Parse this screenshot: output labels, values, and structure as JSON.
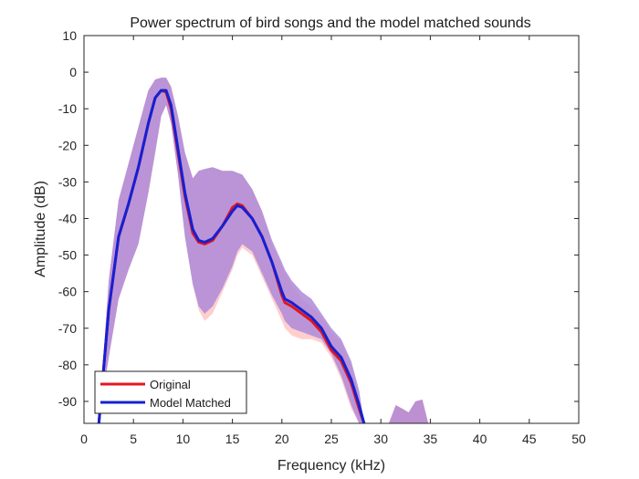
{
  "chart_data": {
    "type": "area",
    "title": "Power spectrum of bird songs and the model matched sounds",
    "xlabel": "Frequency (kHz)",
    "ylabel": "Amplitude (dB)",
    "xlim": [
      0,
      50
    ],
    "ylim": [
      -96,
      10
    ],
    "xticks": [
      0,
      5,
      10,
      15,
      20,
      25,
      30,
      35,
      40,
      45,
      50
    ],
    "yticks": [
      10,
      0,
      -10,
      -20,
      -30,
      -40,
      -50,
      -60,
      -70,
      -80,
      -90
    ],
    "grid": false,
    "legend_position": "bottom-left",
    "series": [
      {
        "name": "Original",
        "color": "#e4141c",
        "band_color": "#ffb3b3",
        "x": [
          1.5,
          2.5,
          3.5,
          4.5,
          5.5,
          6.5,
          7.2,
          7.8,
          8.3,
          8.8,
          9.5,
          10.2,
          11,
          11.6,
          12.2,
          13,
          14,
          15,
          15.5,
          16,
          17,
          18,
          19,
          20,
          20.3,
          21,
          22,
          23,
          24,
          25,
          26,
          27,
          27.8,
          28.3
        ],
        "y": [
          -96,
          -65,
          -45,
          -36,
          -26,
          -14,
          -7,
          -5,
          -5.5,
          -10,
          -22,
          -34,
          -44,
          -46.5,
          -47,
          -46,
          -42,
          -37,
          -36,
          -36.5,
          -40,
          -45,
          -52,
          -61,
          -63,
          -64,
          -66,
          -68,
          -71,
          -76,
          -79,
          -85,
          -92,
          -96
        ],
        "upper": [
          -96,
          -57,
          -35,
          -25,
          -15,
          -5,
          -2,
          -1.5,
          -1.5,
          -4,
          -12,
          -22,
          -29,
          -27,
          -26.5,
          -26,
          -27,
          -27,
          -27.5,
          -28,
          -32,
          -38,
          -47,
          -53,
          -55,
          -58,
          -62,
          -64,
          -67,
          -71,
          -74,
          -80,
          -88,
          -96
        ],
        "lower": [
          -96,
          -78,
          -62,
          -54,
          -47,
          -33,
          -22,
          -12,
          -9,
          -14,
          -28,
          -45,
          -58,
          -65,
          -68,
          -66,
          -60,
          -54,
          -50,
          -48,
          -50,
          -56,
          -62,
          -68,
          -70,
          -72,
          -73,
          -73,
          -74,
          -78,
          -84,
          -92,
          -96,
          -96
        ]
      },
      {
        "name": "Model Matched",
        "color": "#1420d4",
        "band_color": "#b8b8ff",
        "x": [
          1.5,
          2.5,
          3.5,
          4.5,
          5.5,
          6.5,
          7.2,
          7.8,
          8.3,
          8.8,
          9.5,
          10.2,
          11,
          11.6,
          12.2,
          13,
          14,
          15,
          15.5,
          16,
          17,
          18,
          19,
          20,
          20.3,
          21,
          22,
          23,
          24,
          25,
          26,
          27,
          27.8,
          28.3
        ],
        "y": [
          -96,
          -65,
          -45,
          -36,
          -26,
          -14,
          -7,
          -5,
          -5,
          -9,
          -21,
          -33,
          -43,
          -46,
          -46.5,
          -45.5,
          -42,
          -38,
          -36.5,
          -37,
          -40,
          -45,
          -52,
          -60,
          -62,
          -63,
          -65,
          -67,
          -70,
          -75,
          -78,
          -84,
          -91,
          -96
        ],
        "upper": [
          -96,
          -57,
          -35,
          -25,
          -15,
          -5,
          -2,
          -1.5,
          -1.5,
          -4,
          -12,
          -22,
          -29,
          -27,
          -26.5,
          -26,
          -27,
          -27,
          -27.5,
          -28,
          -32,
          -38,
          -46,
          -52,
          -54,
          -57,
          -60,
          -62,
          -66,
          -70,
          -73,
          -79,
          -87,
          -96
        ],
        "lower": [
          -96,
          -78,
          -62,
          -54,
          -47,
          -33,
          -22,
          -12,
          -9,
          -14,
          -28,
          -45,
          -58,
          -64,
          -66,
          -64,
          -59,
          -53,
          -49,
          -47,
          -49,
          -55,
          -61,
          -66,
          -68,
          -70,
          -71,
          -72,
          -73,
          -77,
          -83,
          -91,
          -96,
          -96
        ]
      }
    ],
    "extra_band": {
      "x": [
        30.8,
        31.5,
        32.2,
        32.8,
        33.5,
        34.2,
        34.8
      ],
      "upper": [
        -96,
        -91,
        -92,
        -93,
        -90,
        -89.5,
        -96
      ],
      "lower": [
        -96,
        -96,
        -96,
        -96,
        -96,
        -96,
        -96
      ]
    }
  },
  "legend": {
    "items": [
      "Original",
      "Model Matched"
    ]
  }
}
